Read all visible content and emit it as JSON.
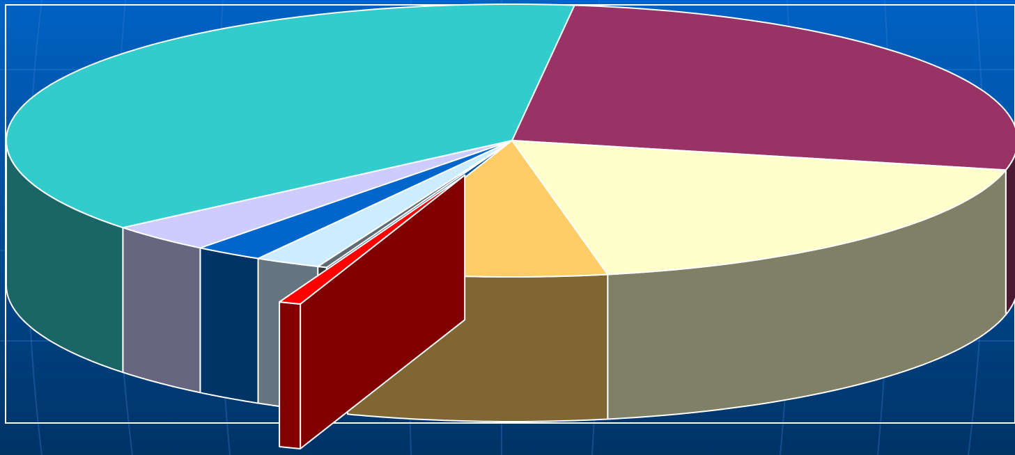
{
  "chart_data": {
    "type": "pie",
    "values": [
      26.5,
      18.5,
      8.3,
      0.7,
      0.3,
      2.1,
      2.2,
      3.4,
      38.0
    ],
    "colors": [
      "#993366",
      "#FFFFCC",
      "#FFCC66",
      "#FF0000",
      "#5F6B73",
      "#CCECFF",
      "#0066CC",
      "#CCCCFF",
      "#33CCCC"
    ],
    "explode": [
      0,
      0,
      0,
      0.27,
      0,
      0,
      0,
      0,
      0
    ]
  }
}
